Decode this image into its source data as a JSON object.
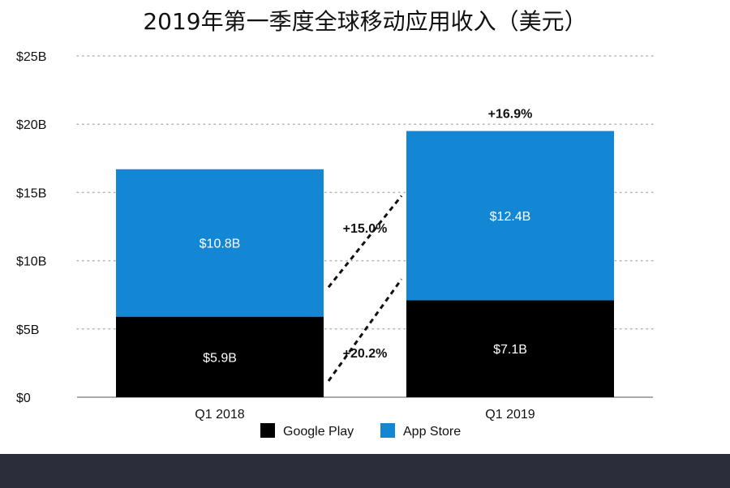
{
  "chart_data": {
    "type": "bar",
    "stacked": true,
    "title": "2019年第一季度全球移动应用收入（美元）",
    "categories": [
      "Q1 2018",
      "Q1 2019"
    ],
    "series": [
      {
        "name": "Google Play",
        "values": [
          5.9,
          7.1
        ],
        "labels": [
          "$5.9B",
          "$7.1B"
        ],
        "color": "#000000"
      },
      {
        "name": "App Store",
        "values": [
          10.8,
          12.4
        ],
        "labels": [
          "$10.8B",
          "$12.4B"
        ],
        "color": "#1386d4"
      }
    ],
    "ylim": [
      0,
      25
    ],
    "yticks": [
      0,
      5,
      10,
      15,
      20,
      25
    ],
    "ytick_labels": [
      "$0",
      "$5B",
      "$10B",
      "$15B",
      "$20B",
      "$25B"
    ],
    "growth_labels": {
      "google_play": "+20.2%",
      "app_store": "+15.0%",
      "total": "+16.9%"
    },
    "grid": "dotted-horizontal",
    "legend_position": "bottom-center",
    "xlabel": "",
    "ylabel": ""
  }
}
